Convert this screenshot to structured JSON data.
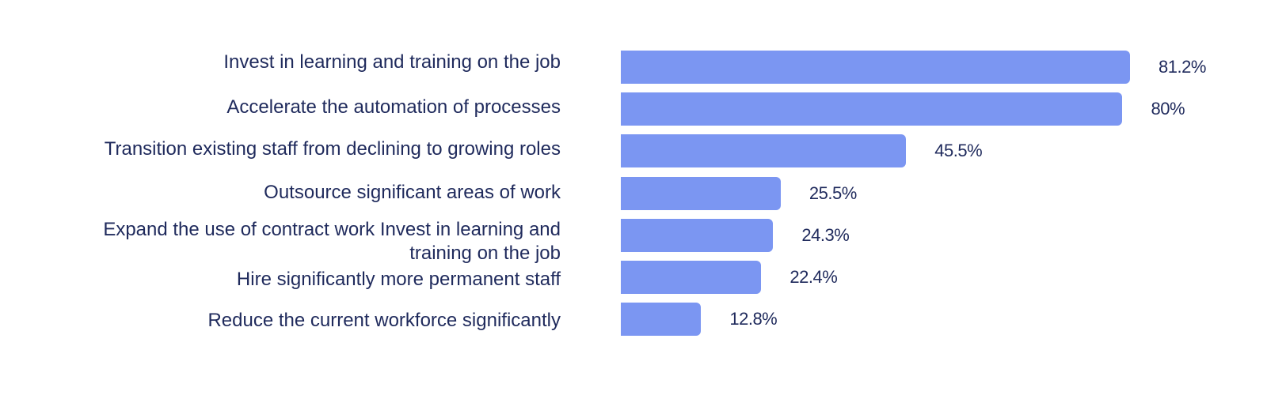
{
  "chart_data": {
    "type": "bar",
    "orientation": "horizontal",
    "title": "",
    "xlabel": "",
    "ylabel": "",
    "grid": false,
    "xlim": [
      0,
      100
    ],
    "bar_color": "#7b96f2",
    "text_color": "#1f2a5c",
    "categories": [
      "Invest in learning and training on the job",
      "Accelerate the automation of processes",
      "Transition existing staff from declining to growing roles",
      "Outsource significant areas of work",
      "Expand the use of contract work Invest in learning and training on the job",
      "Hire significantly more permanent staff",
      "Reduce the current workforce significantly"
    ],
    "values": [
      81.2,
      80,
      45.5,
      25.5,
      24.3,
      22.4,
      12.8
    ],
    "value_labels": [
      "81.2%",
      "80%",
      "45.5%",
      "25.5%",
      "24.3%",
      "22.4%",
      "12.8%"
    ]
  }
}
